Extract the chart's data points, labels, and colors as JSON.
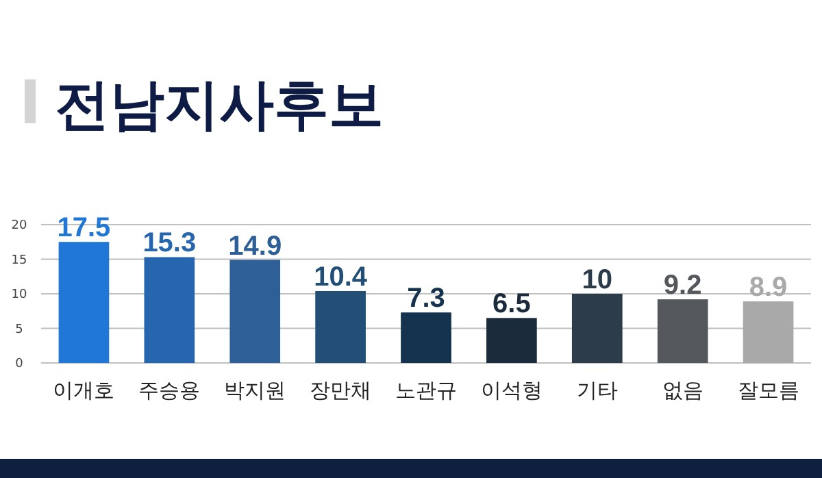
{
  "chart_data": {
    "type": "bar",
    "title": "전남지사후보",
    "categories": [
      "이개호",
      "주승용",
      "박지원",
      "장만채",
      "노관규",
      "이석형",
      "기타",
      "없음",
      "잘모름"
    ],
    "values": [
      17.5,
      15.3,
      14.9,
      10.4,
      7.3,
      6.5,
      10,
      9.2,
      8.9
    ],
    "colors": [
      "#2177d6",
      "#2566ae",
      "#2e5f96",
      "#234f77",
      "#15324f",
      "#1c2b3b",
      "#2c3c4b",
      "#54575b",
      "#a9a9a9"
    ],
    "ylim": [
      0,
      20
    ],
    "yticks": [
      0,
      5,
      10,
      15,
      20
    ],
    "grid": "y",
    "data_labels": true
  }
}
